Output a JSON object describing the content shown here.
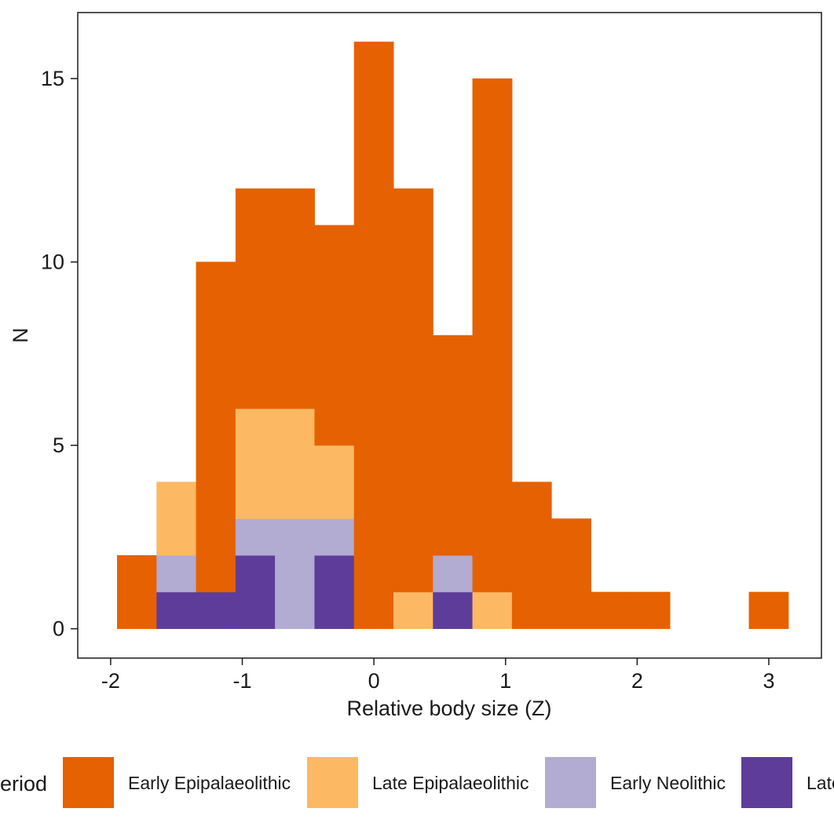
{
  "chart_data": {
    "type": "bar",
    "subtype": "stacked-histogram",
    "xlabel": "Relative body size (Z)",
    "ylabel": "N",
    "xlim": [
      -2.25,
      3.4
    ],
    "ylim": [
      -0.8,
      16.8
    ],
    "xticks": [
      -2,
      -1,
      0,
      1,
      2,
      3
    ],
    "xtick_labels": [
      "-2",
      "-1",
      "0",
      "1",
      "2",
      "3"
    ],
    "yticks": [
      0,
      5,
      10,
      15
    ],
    "ytick_labels": [
      "0",
      "5",
      "10",
      "15"
    ],
    "grid": false,
    "legend_position": "bottom",
    "legend_title": "Period",
    "bin_edges": [
      -1.95,
      -1.65,
      -1.35,
      -1.05,
      -0.75,
      -0.45,
      -0.15,
      0.15,
      0.45,
      0.75,
      1.05,
      1.35,
      1.65,
      1.95,
      2.25,
      2.55,
      2.85,
      3.15
    ],
    "series": [
      {
        "name": "Late Neolithic",
        "color": "#5e3c99",
        "values": [
          0,
          1,
          1,
          2,
          0,
          2,
          0,
          0,
          1,
          0,
          0,
          0,
          0,
          0,
          0,
          0,
          0
        ]
      },
      {
        "name": "Early Neolithic",
        "color": "#b2abd2",
        "values": [
          0,
          1,
          0,
          1,
          3,
          1,
          0,
          0,
          1,
          0,
          0,
          0,
          0,
          0,
          0,
          0,
          0
        ]
      },
      {
        "name": "Late Epipalaeolithic",
        "color": "#fdb863",
        "values": [
          0,
          2,
          0,
          3,
          3,
          2,
          0,
          1,
          0,
          1,
          0,
          0,
          0,
          0,
          0,
          0,
          0
        ]
      },
      {
        "name": "Early Epipalaeolithic",
        "color": "#e66101",
        "values": [
          2,
          0,
          9,
          6,
          6,
          6,
          16,
          11,
          6,
          14,
          4,
          3,
          1,
          1,
          0,
          0,
          1
        ]
      }
    ],
    "legend_order": [
      "Early Epipalaeolithic",
      "Late Epipalaeolithic",
      "Early Neolithic",
      "Late Neolithic"
    ]
  }
}
